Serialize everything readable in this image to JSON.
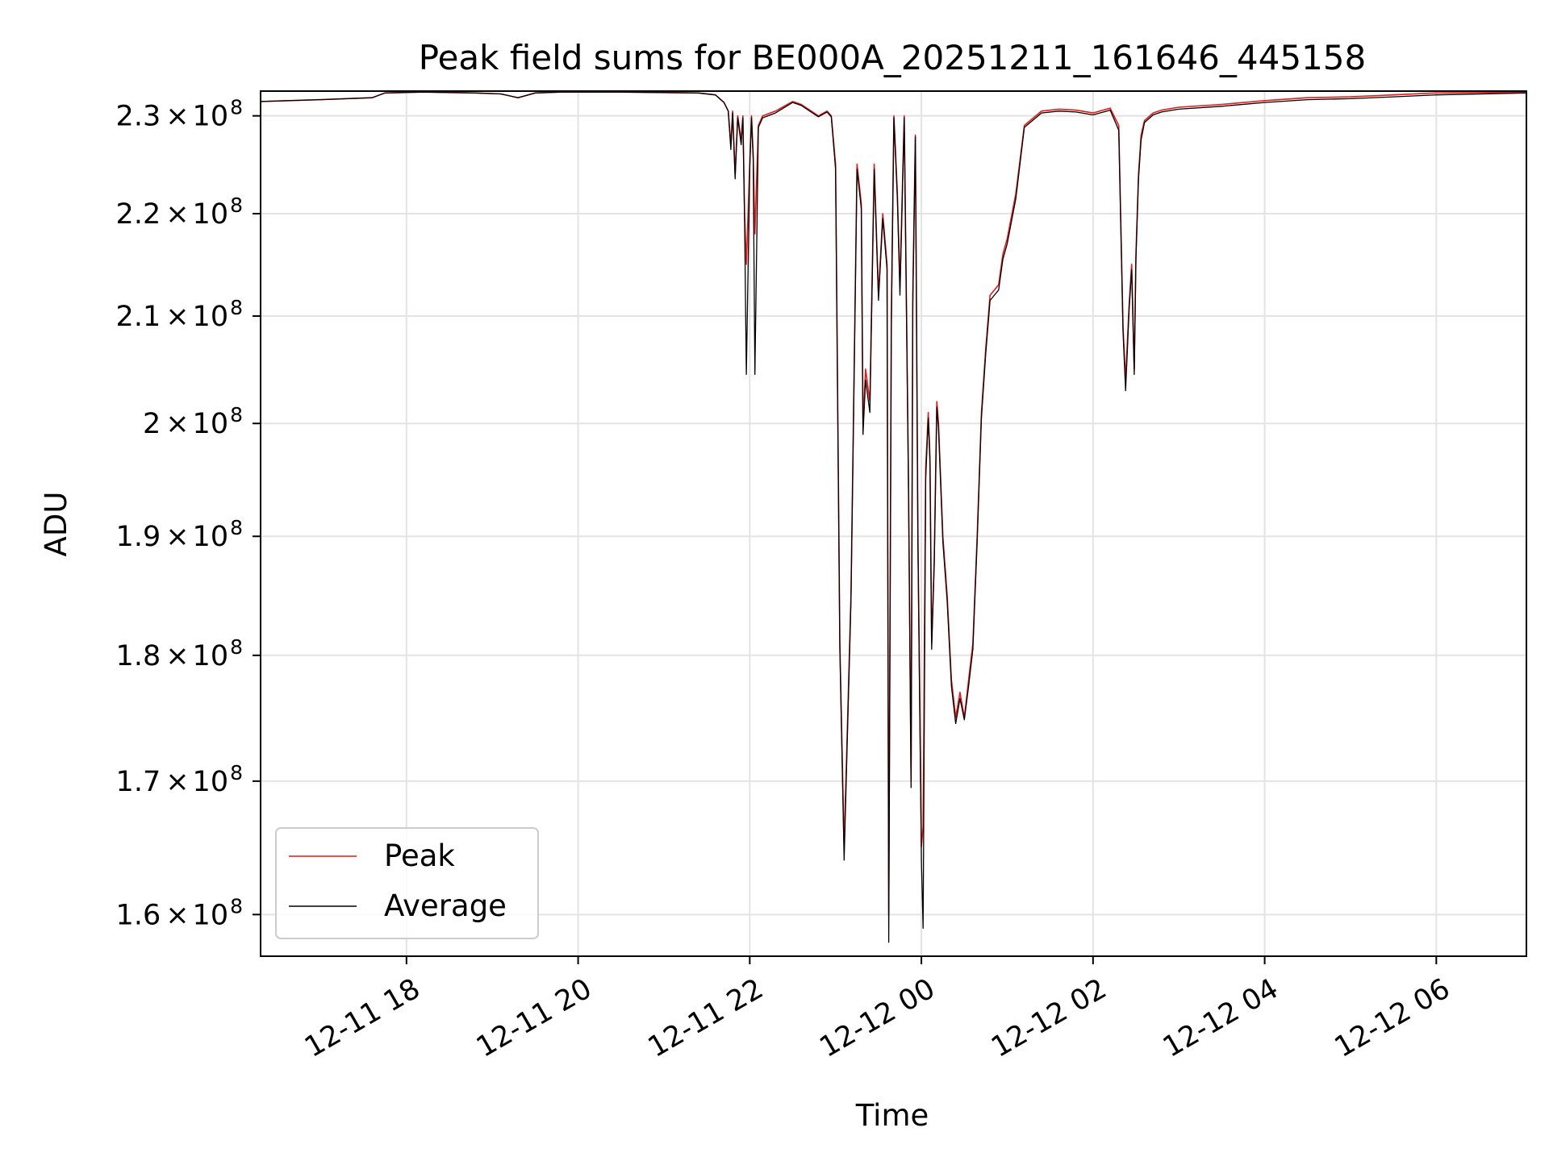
{
  "chart_data": {
    "type": "line",
    "title": "Peak field sums for BE000A_20251211_161646_445158",
    "xlabel": "Time",
    "ylabel": "ADU",
    "x_unit": "hours since 2025-12-11 00:00",
    "xlim": [
      16.3,
      31.05
    ],
    "ylim": [
      157000000,
      232600000
    ],
    "y_scale": "log",
    "grid": true,
    "legend": {
      "position": "lower-left",
      "entries": [
        "Peak",
        "Average"
      ]
    },
    "x_ticks": [
      {
        "value": 18,
        "label": "12-11 18"
      },
      {
        "value": 20,
        "label": "12-11 20"
      },
      {
        "value": 22,
        "label": "12-11 22"
      },
      {
        "value": 24,
        "label": "12-12 00"
      },
      {
        "value": 26,
        "label": "12-12 02"
      },
      {
        "value": 28,
        "label": "12-12 04"
      },
      {
        "value": 30,
        "label": "12-12 06"
      }
    ],
    "y_ticks": [
      {
        "value": 160000000,
        "mantissa": "1.6",
        "times": "×",
        "base": "10",
        "exp": "8"
      },
      {
        "value": 170000000,
        "mantissa": "1.7",
        "times": "×",
        "base": "10",
        "exp": "8"
      },
      {
        "value": 180000000,
        "mantissa": "1.8",
        "times": "×",
        "base": "10",
        "exp": "8"
      },
      {
        "value": 190000000,
        "mantissa": "1.9",
        "times": "×",
        "base": "10",
        "exp": "8"
      },
      {
        "value": 200000000,
        "mantissa": "2",
        "times": "×",
        "base": "10",
        "exp": "8"
      },
      {
        "value": 210000000,
        "mantissa": "2.1",
        "times": "×",
        "base": "10",
        "exp": "8"
      },
      {
        "value": 220000000,
        "mantissa": "2.2",
        "times": "×",
        "base": "10",
        "exp": "8"
      },
      {
        "value": 230000000,
        "mantissa": "2.3",
        "times": "×",
        "base": "10",
        "exp": "8"
      }
    ],
    "series": [
      {
        "name": "Peak",
        "color": "#e41a1c",
        "x": [
          16.3,
          17.0,
          17.6,
          17.75,
          18.2,
          18.8,
          19.1,
          19.3,
          19.5,
          19.8,
          20.5,
          21.0,
          21.4,
          21.6,
          21.7,
          21.75,
          21.78,
          21.8,
          21.83,
          21.86,
          21.9,
          21.92,
          21.94,
          21.96,
          22.0,
          22.02,
          22.04,
          22.06,
          22.1,
          22.15,
          22.3,
          22.5,
          22.6,
          22.8,
          22.9,
          22.95,
          23.0,
          23.05,
          23.1,
          23.18,
          23.25,
          23.3,
          23.32,
          23.35,
          23.4,
          23.45,
          23.5,
          23.55,
          23.6,
          23.62,
          23.65,
          23.68,
          23.72,
          23.75,
          23.8,
          23.85,
          23.88,
          23.9,
          23.93,
          23.96,
          24.0,
          24.02,
          24.05,
          24.08,
          24.1,
          24.12,
          24.15,
          24.18,
          24.2,
          24.25,
          24.3,
          24.35,
          24.4,
          24.45,
          24.5,
          24.55,
          24.6,
          24.65,
          24.7,
          24.75,
          24.8,
          24.85,
          24.9,
          24.95,
          25.0,
          25.1,
          25.2,
          25.4,
          25.6,
          25.8,
          26.0,
          26.2,
          26.3,
          26.35,
          26.38,
          26.42,
          26.45,
          26.48,
          26.5,
          26.53,
          26.56,
          26.6,
          26.7,
          26.8,
          27.0,
          27.5,
          28.0,
          28.5,
          29.0,
          29.5,
          30.0,
          31.05
        ],
        "y": [
          231500000,
          231700000,
          231900000,
          232400000,
          232500000,
          232400000,
          232300000,
          231900000,
          232400000,
          232500000,
          232500000,
          232450000,
          232400000,
          232200000,
          231400000,
          230500000,
          227000000,
          230500000,
          224000000,
          230000000,
          227500000,
          230000000,
          220000000,
          215000000,
          225000000,
          230000000,
          226000000,
          218000000,
          229000000,
          230000000,
          230500000,
          231500000,
          231200000,
          230000000,
          230500000,
          230000000,
          225000000,
          181000000,
          165000000,
          185000000,
          225000000,
          221000000,
          200000000,
          205000000,
          202000000,
          225000000,
          212000000,
          220000000,
          215000000,
          160000000,
          210000000,
          230000000,
          222000000,
          213000000,
          230000000,
          195000000,
          170000000,
          212000000,
          228000000,
          190000000,
          165000000,
          166500000,
          196000000,
          201000000,
          197000000,
          181000000,
          188000000,
          202000000,
          200000000,
          190000000,
          185000000,
          178000000,
          175000000,
          177000000,
          175000000,
          178000000,
          181000000,
          190000000,
          201000000,
          207000000,
          212000000,
          212500000,
          213000000,
          216000000,
          217500000,
          222000000,
          229000000,
          230500000,
          230700000,
          230600000,
          230300000,
          230800000,
          229000000,
          209000000,
          204000000,
          211000000,
          215000000,
          205000000,
          216000000,
          224000000,
          228000000,
          229500000,
          230300000,
          230600000,
          230900000,
          231200000,
          231600000,
          231900000,
          232000000,
          232200000,
          232400000,
          232500000
        ]
      },
      {
        "name": "Average",
        "color": "#000000",
        "x": [
          16.3,
          17.0,
          17.6,
          17.75,
          18.2,
          18.8,
          19.1,
          19.3,
          19.5,
          19.8,
          20.5,
          21.0,
          21.4,
          21.6,
          21.7,
          21.75,
          21.78,
          21.8,
          21.83,
          21.86,
          21.9,
          21.92,
          21.94,
          21.96,
          22.0,
          22.02,
          22.04,
          22.06,
          22.1,
          22.15,
          22.3,
          22.5,
          22.6,
          22.8,
          22.9,
          22.95,
          23.0,
          23.05,
          23.1,
          23.18,
          23.25,
          23.3,
          23.32,
          23.35,
          23.4,
          23.45,
          23.5,
          23.55,
          23.6,
          23.62,
          23.65,
          23.68,
          23.72,
          23.75,
          23.8,
          23.85,
          23.88,
          23.9,
          23.93,
          23.96,
          24.0,
          24.02,
          24.05,
          24.08,
          24.1,
          24.12,
          24.15,
          24.18,
          24.2,
          24.25,
          24.3,
          24.35,
          24.4,
          24.45,
          24.5,
          24.55,
          24.6,
          24.65,
          24.7,
          24.75,
          24.8,
          24.85,
          24.9,
          24.95,
          25.0,
          25.1,
          25.2,
          25.4,
          25.6,
          25.8,
          26.0,
          26.2,
          26.3,
          26.35,
          26.38,
          26.42,
          26.45,
          26.48,
          26.5,
          26.53,
          26.56,
          26.6,
          26.7,
          26.8,
          27.0,
          27.5,
          28.0,
          28.5,
          29.0,
          29.5,
          30.0,
          31.05
        ],
        "y": [
          231500000,
          231700000,
          231900000,
          232400000,
          232500000,
          232400000,
          232300000,
          231900000,
          232400000,
          232500000,
          232500000,
          232450000,
          232400000,
          232200000,
          231400000,
          230500000,
          226500000,
          230300000,
          223500000,
          229800000,
          227000000,
          229800000,
          219500000,
          204500000,
          224500000,
          229800000,
          225500000,
          204500000,
          228800000,
          229800000,
          230300000,
          231400000,
          231100000,
          229900000,
          230400000,
          229900000,
          224500000,
          180500000,
          164000000,
          184500000,
          224500000,
          220500000,
          199000000,
          204000000,
          201000000,
          224500000,
          211500000,
          219500000,
          214500000,
          158000000,
          209000000,
          229800000,
          221500000,
          212000000,
          229800000,
          194000000,
          169500000,
          211000000,
          227800000,
          189000000,
          164000000,
          159000000,
          195000000,
          200500000,
          196500000,
          180500000,
          187500000,
          201500000,
          199500000,
          189500000,
          184500000,
          177500000,
          174500000,
          176500000,
          174800000,
          177500000,
          180500000,
          189500000,
          200500000,
          206500000,
          211500000,
          212000000,
          212500000,
          215500000,
          217000000,
          221500000,
          228800000,
          230300000,
          230500000,
          230400000,
          230100000,
          230600000,
          228500000,
          208500000,
          203000000,
          210500000,
          214500000,
          204500000,
          215500000,
          223500000,
          227500000,
          229300000,
          230100000,
          230400000,
          230700000,
          231000000,
          231400000,
          231700000,
          231800000,
          232000000,
          232200000,
          232400000
        ]
      }
    ]
  }
}
